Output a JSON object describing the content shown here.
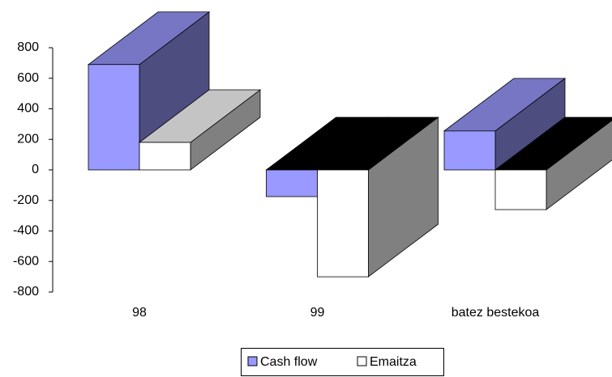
{
  "chart_data": {
    "type": "bar3d",
    "categories": [
      "98",
      "99",
      "batez bestekoa"
    ],
    "series": [
      {
        "name": "Cash flow",
        "color": "#9999ff",
        "values": [
          690,
          -175,
          255
        ]
      },
      {
        "name": "Emaitza",
        "color": "#ffffff",
        "values": [
          180,
          -700,
          -260
        ]
      }
    ],
    "ylim": [
      -800,
      800
    ],
    "yticks": [
      -800,
      -600,
      -400,
      -200,
      0,
      200,
      400,
      600,
      800
    ],
    "legend": "bottom"
  }
}
